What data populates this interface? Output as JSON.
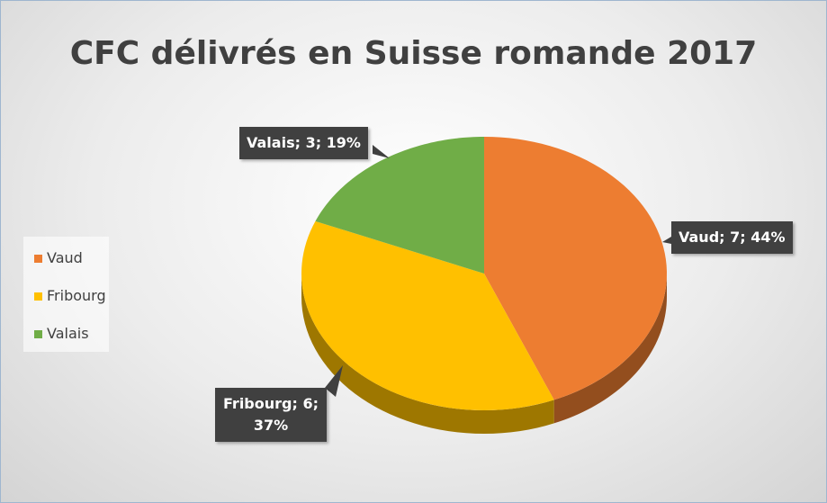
{
  "chart_data": {
    "type": "pie3d",
    "title": "CFC délivrés en Suisse romande 2017",
    "categories": [
      "Vaud",
      "Fribourg",
      "Valais"
    ],
    "values": [
      7,
      6,
      3
    ],
    "value_labels": [
      "Vaud; 7; 44%",
      "Fribourg; 6; 37%",
      "Valais; 3; 19%"
    ],
    "colors": [
      "#ed7d31",
      "#ffc000",
      "#70ad47"
    ],
    "legend": "left"
  }
}
